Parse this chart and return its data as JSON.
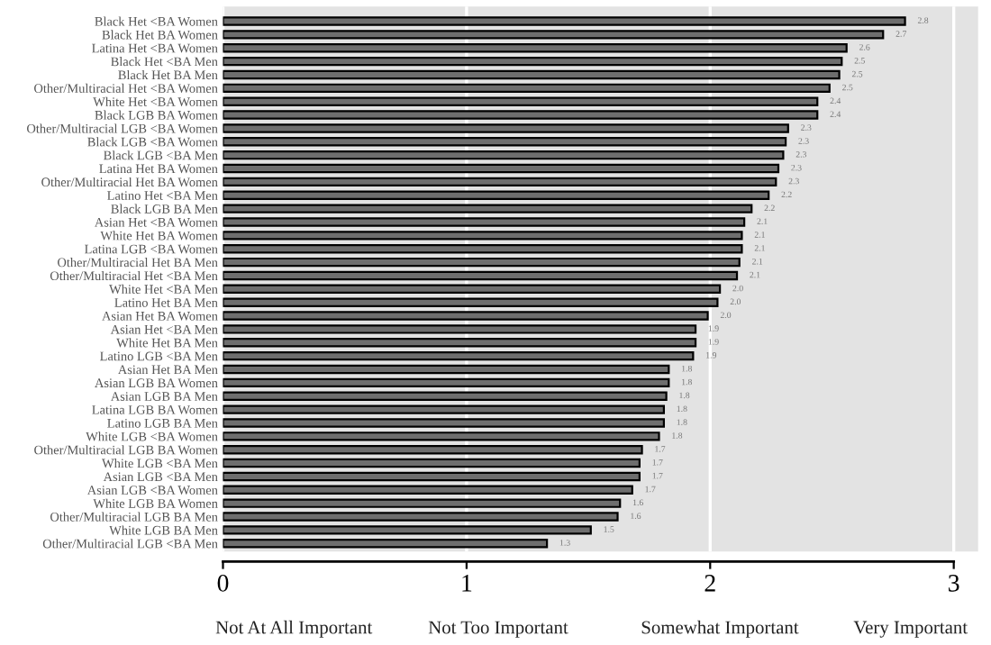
{
  "chart_data": {
    "type": "bar",
    "orientation": "horizontal",
    "categories": [
      "Black Het <BA Women",
      "Black Het BA Women",
      "Latina Het <BA Women",
      "Black Het <BA Men",
      "Black Het BA Men",
      "Other/Multiracial Het <BA Women",
      "White Het <BA Women",
      "Black LGB BA Women",
      "Other/Multiracial LGB <BA Women",
      "Black LGB <BA Women",
      "Black LGB <BA Men",
      "Latina Het BA Women",
      "Other/Multiracial Het BA Women",
      "Latino Het <BA Men",
      "Black LGB BA Men",
      "Asian Het <BA Women",
      "White Het BA Women",
      "Latina LGB <BA Women",
      "Other/Multiracial Het BA Men",
      "Other/Multiracial Het <BA Men",
      "White Het <BA Men",
      "Latino Het BA Men",
      "Asian Het BA Women",
      "Asian Het <BA Men",
      "White Het BA Men",
      "Latino LGB <BA Men",
      "Asian Het BA Men",
      "Asian LGB BA Women",
      "Asian LGB BA Men",
      "Latina LGB BA Women",
      "Latino LGB BA Men",
      "White LGB <BA Women",
      "Other/Multiracial LGB BA Women",
      "White LGB <BA Men",
      "Asian LGB <BA Men",
      "Asian LGB <BA Women",
      "White LGB BA Women",
      "Other/Multiracial LGB BA Men",
      "White LGB BA Men",
      "Other/Multiracial LGB <BA Men"
    ],
    "values": [
      2.8,
      2.71,
      2.56,
      2.54,
      2.53,
      2.49,
      2.44,
      2.44,
      2.32,
      2.31,
      2.3,
      2.28,
      2.27,
      2.24,
      2.17,
      2.14,
      2.13,
      2.13,
      2.12,
      2.11,
      2.04,
      2.03,
      1.99,
      1.94,
      1.94,
      1.93,
      1.83,
      1.83,
      1.82,
      1.81,
      1.81,
      1.79,
      1.72,
      1.71,
      1.71,
      1.68,
      1.63,
      1.62,
      1.51,
      1.33
    ],
    "value_labels": [
      "2.8",
      "2.7",
      "2.6",
      "2.5",
      "2.5",
      "2.5",
      "2.4",
      "2.4",
      "2.3",
      "2.3",
      "2.3",
      "2.3",
      "2.3",
      "2.2",
      "2.2",
      "2.1",
      "2.1",
      "2.1",
      "2.1",
      "2.1",
      "2.0",
      "2.0",
      "2.0",
      "1.9",
      "1.9",
      "1.9",
      "1.8",
      "1.8",
      "1.8",
      "1.8",
      "1.8",
      "1.8",
      "1.7",
      "1.7",
      "1.7",
      "1.7",
      "1.6",
      "1.6",
      "1.5",
      "1.3"
    ],
    "color": "#6e6e6e",
    "xlim": [
      0,
      3.1
    ],
    "xticks": [
      0,
      1,
      2,
      3
    ],
    "annotations": [
      "Not At All Important",
      "Not Too Important",
      "Somewhat Important",
      "Very Important"
    ],
    "grid": "x"
  }
}
